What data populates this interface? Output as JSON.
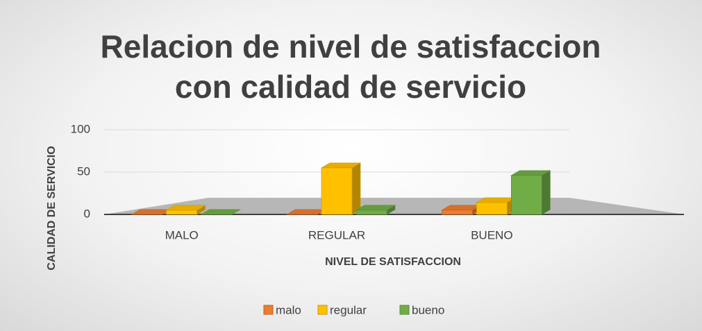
{
  "chart_data": {
    "type": "bar3d",
    "title": "Relacion de nivel de satisfaccion con calidad de servicio",
    "xlabel": "NIVEL DE SATISFACCION",
    "ylabel": "CALIDAD DE SERVICIO",
    "categories": [
      "MALO",
      "REGULAR",
      "BUENO"
    ],
    "series": [
      {
        "name": "malo",
        "color": "#ed7d31",
        "values": [
          0,
          0,
          5
        ]
      },
      {
        "name": "regular",
        "color": "#ffc000",
        "values": [
          5,
          55,
          14
        ]
      },
      {
        "name": "bueno",
        "color": "#70ad47",
        "values": [
          0,
          5,
          46
        ]
      }
    ],
    "ylim": [
      0,
      100
    ],
    "yticks": [
      0,
      50,
      100
    ],
    "grid": true,
    "legend": "bottom"
  }
}
